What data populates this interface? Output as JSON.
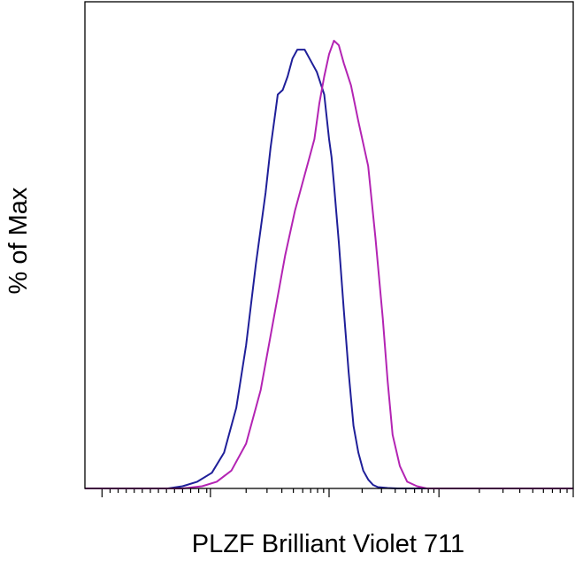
{
  "chart_data": {
    "type": "line",
    "title": "",
    "xlabel": "PLZF Brilliant Violet 711",
    "ylabel": "% of Max",
    "xscale": "log",
    "grid": false,
    "legend": "none",
    "colors": {
      "series_1": "#1f1f99",
      "series_2": "#b324b3",
      "axis": "#000000"
    },
    "xlim": [
      0.0,
      1.0
    ],
    "ylim": [
      0,
      100
    ],
    "series": [
      {
        "color": "#1f1f99",
        "x": [
          0.0,
          0.17,
          0.2,
          0.23,
          0.26,
          0.285,
          0.31,
          0.33,
          0.35,
          0.37,
          0.38,
          0.39,
          0.395,
          0.405,
          0.415,
          0.425,
          0.435,
          0.45,
          0.46,
          0.475,
          0.49,
          0.5,
          0.505,
          0.51,
          0.52,
          0.53,
          0.54,
          0.55,
          0.56,
          0.57,
          0.58,
          0.59,
          0.6,
          0.62,
          0.64,
          0.66,
          0.7,
          1.0
        ],
        "y": [
          0,
          0,
          0.5,
          1.5,
          3.5,
          8,
          18,
          32,
          50,
          66,
          76,
          84,
          88,
          89,
          92,
          96,
          98,
          98,
          96,
          93,
          88,
          78,
          74,
          68,
          55,
          40,
          26,
          14,
          8,
          4,
          2,
          0.8,
          0.3,
          0.1,
          0,
          0,
          0,
          0
        ]
      },
      {
        "color": "#b324b3",
        "x": [
          0.0,
          0.2,
          0.24,
          0.27,
          0.3,
          0.33,
          0.36,
          0.39,
          0.41,
          0.43,
          0.45,
          0.46,
          0.47,
          0.48,
          0.49,
          0.5,
          0.51,
          0.52,
          0.53,
          0.545,
          0.56,
          0.58,
          0.595,
          0.61,
          0.62,
          0.63,
          0.645,
          0.66,
          0.68,
          0.7,
          0.75,
          1.0
        ],
        "y": [
          0,
          0,
          0.5,
          1.5,
          4,
          10,
          22,
          40,
          52,
          62,
          70,
          74,
          78,
          86,
          92,
          97,
          100,
          99,
          95,
          90,
          82,
          72,
          56,
          38,
          24,
          12,
          5,
          1.5,
          0.5,
          0,
          0,
          0
        ]
      }
    ]
  }
}
